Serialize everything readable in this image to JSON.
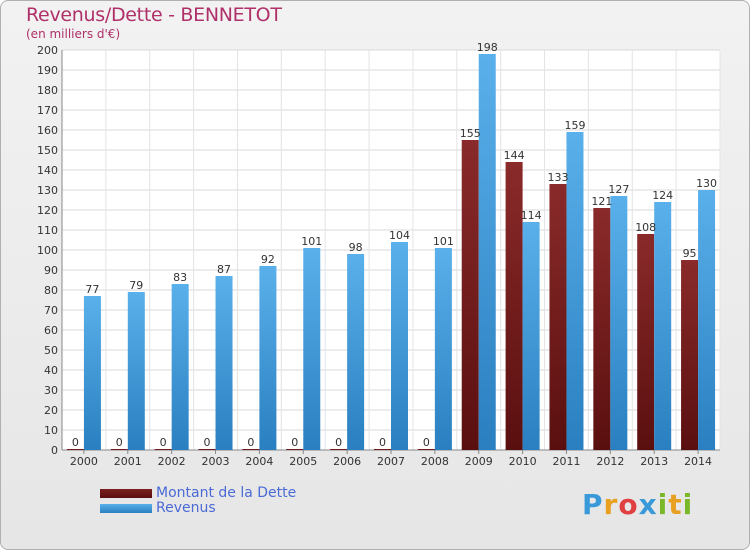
{
  "header": {
    "title": "Revenus/Dette - BENNETOT",
    "subtitle": "(en milliers d'€)"
  },
  "legend": {
    "debt_label": "Montant de la Dette",
    "revenue_label": "Revenus"
  },
  "logo": {
    "text": "Proxiti"
  },
  "colors": {
    "debt": "#7a1f1f",
    "revenue": "#4aa3e0",
    "title": "#b0306a",
    "legend_text": "#4a6ad6"
  },
  "chart_data": {
    "type": "bar",
    "categories": [
      "2000",
      "2001",
      "2002",
      "2003",
      "2004",
      "2005",
      "2006",
      "2007",
      "2008",
      "2009",
      "2010",
      "2011",
      "2012",
      "2013",
      "2014"
    ],
    "series": [
      {
        "name": "Montant de la Dette",
        "values": [
          0,
          0,
          0,
          0,
          0,
          0,
          0,
          0,
          0,
          155,
          144,
          133,
          121,
          108,
          95
        ]
      },
      {
        "name": "Revenus",
        "values": [
          77,
          79,
          83,
          87,
          92,
          101,
          98,
          104,
          101,
          198,
          114,
          159,
          127,
          124,
          130
        ]
      }
    ],
    "title": "Revenus/Dette - BENNETOT",
    "ylabel": "(en milliers d'€)",
    "ylim": [
      0,
      200
    ],
    "yticks": [
      0,
      10,
      20,
      30,
      40,
      50,
      60,
      70,
      80,
      90,
      100,
      110,
      120,
      130,
      140,
      150,
      160,
      170,
      180,
      190,
      200
    ],
    "grid": true,
    "legend_position": "bottom-left"
  }
}
